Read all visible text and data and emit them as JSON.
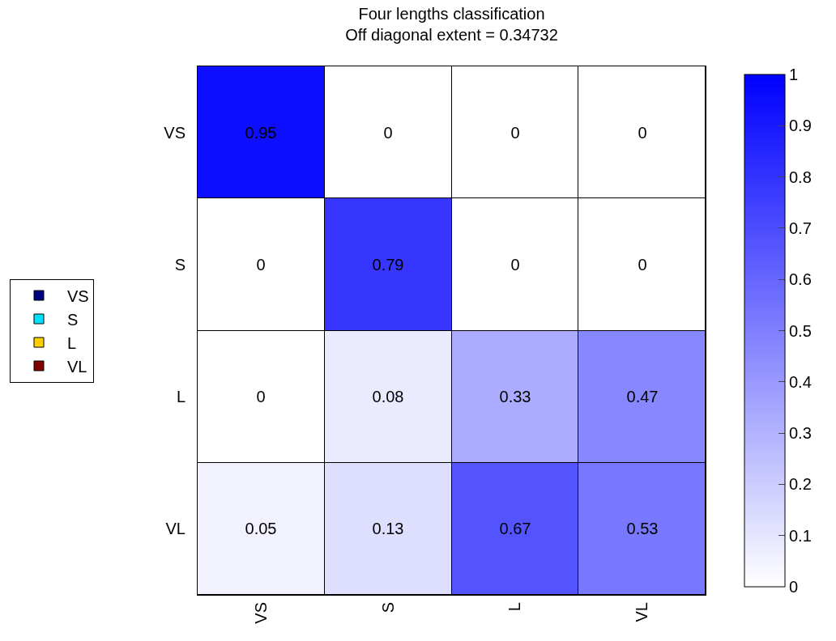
{
  "chart_data": {
    "type": "heatmap",
    "title": "Four lengths classification",
    "subtitle": "Off diagonal extent = 0.34732",
    "categories": [
      "VS",
      "S",
      "L",
      "VL"
    ],
    "y_categories": [
      "VS",
      "S",
      "L",
      "VL"
    ],
    "cells": [
      [
        0.95,
        0,
        0,
        0
      ],
      [
        0,
        0.79,
        0,
        0
      ],
      [
        0,
        0.08,
        0.33,
        0.47
      ],
      [
        0.05,
        0.13,
        0.67,
        0.53
      ]
    ],
    "clim": [
      0,
      1
    ],
    "cticks": [
      0,
      0.1,
      0.2,
      0.3,
      0.4,
      0.5,
      0.6,
      0.7,
      0.8,
      0.9,
      1
    ],
    "colors": [
      "#ffffff",
      "#0000ff"
    ],
    "data_labels": true,
    "legend": "left",
    "series": [
      {
        "name": "VS",
        "color": "#000080",
        "values": [
          null,
          null,
          null,
          null
        ]
      },
      {
        "name": "S",
        "color": "#00e0ff",
        "values": [
          null,
          null,
          null,
          null
        ]
      },
      {
        "name": "L",
        "color": "#ffd000",
        "values": [
          null,
          null,
          null,
          null
        ]
      },
      {
        "name": "VL",
        "color": "#800000",
        "values": [
          null,
          null,
          null,
          null
        ]
      }
    ]
  }
}
